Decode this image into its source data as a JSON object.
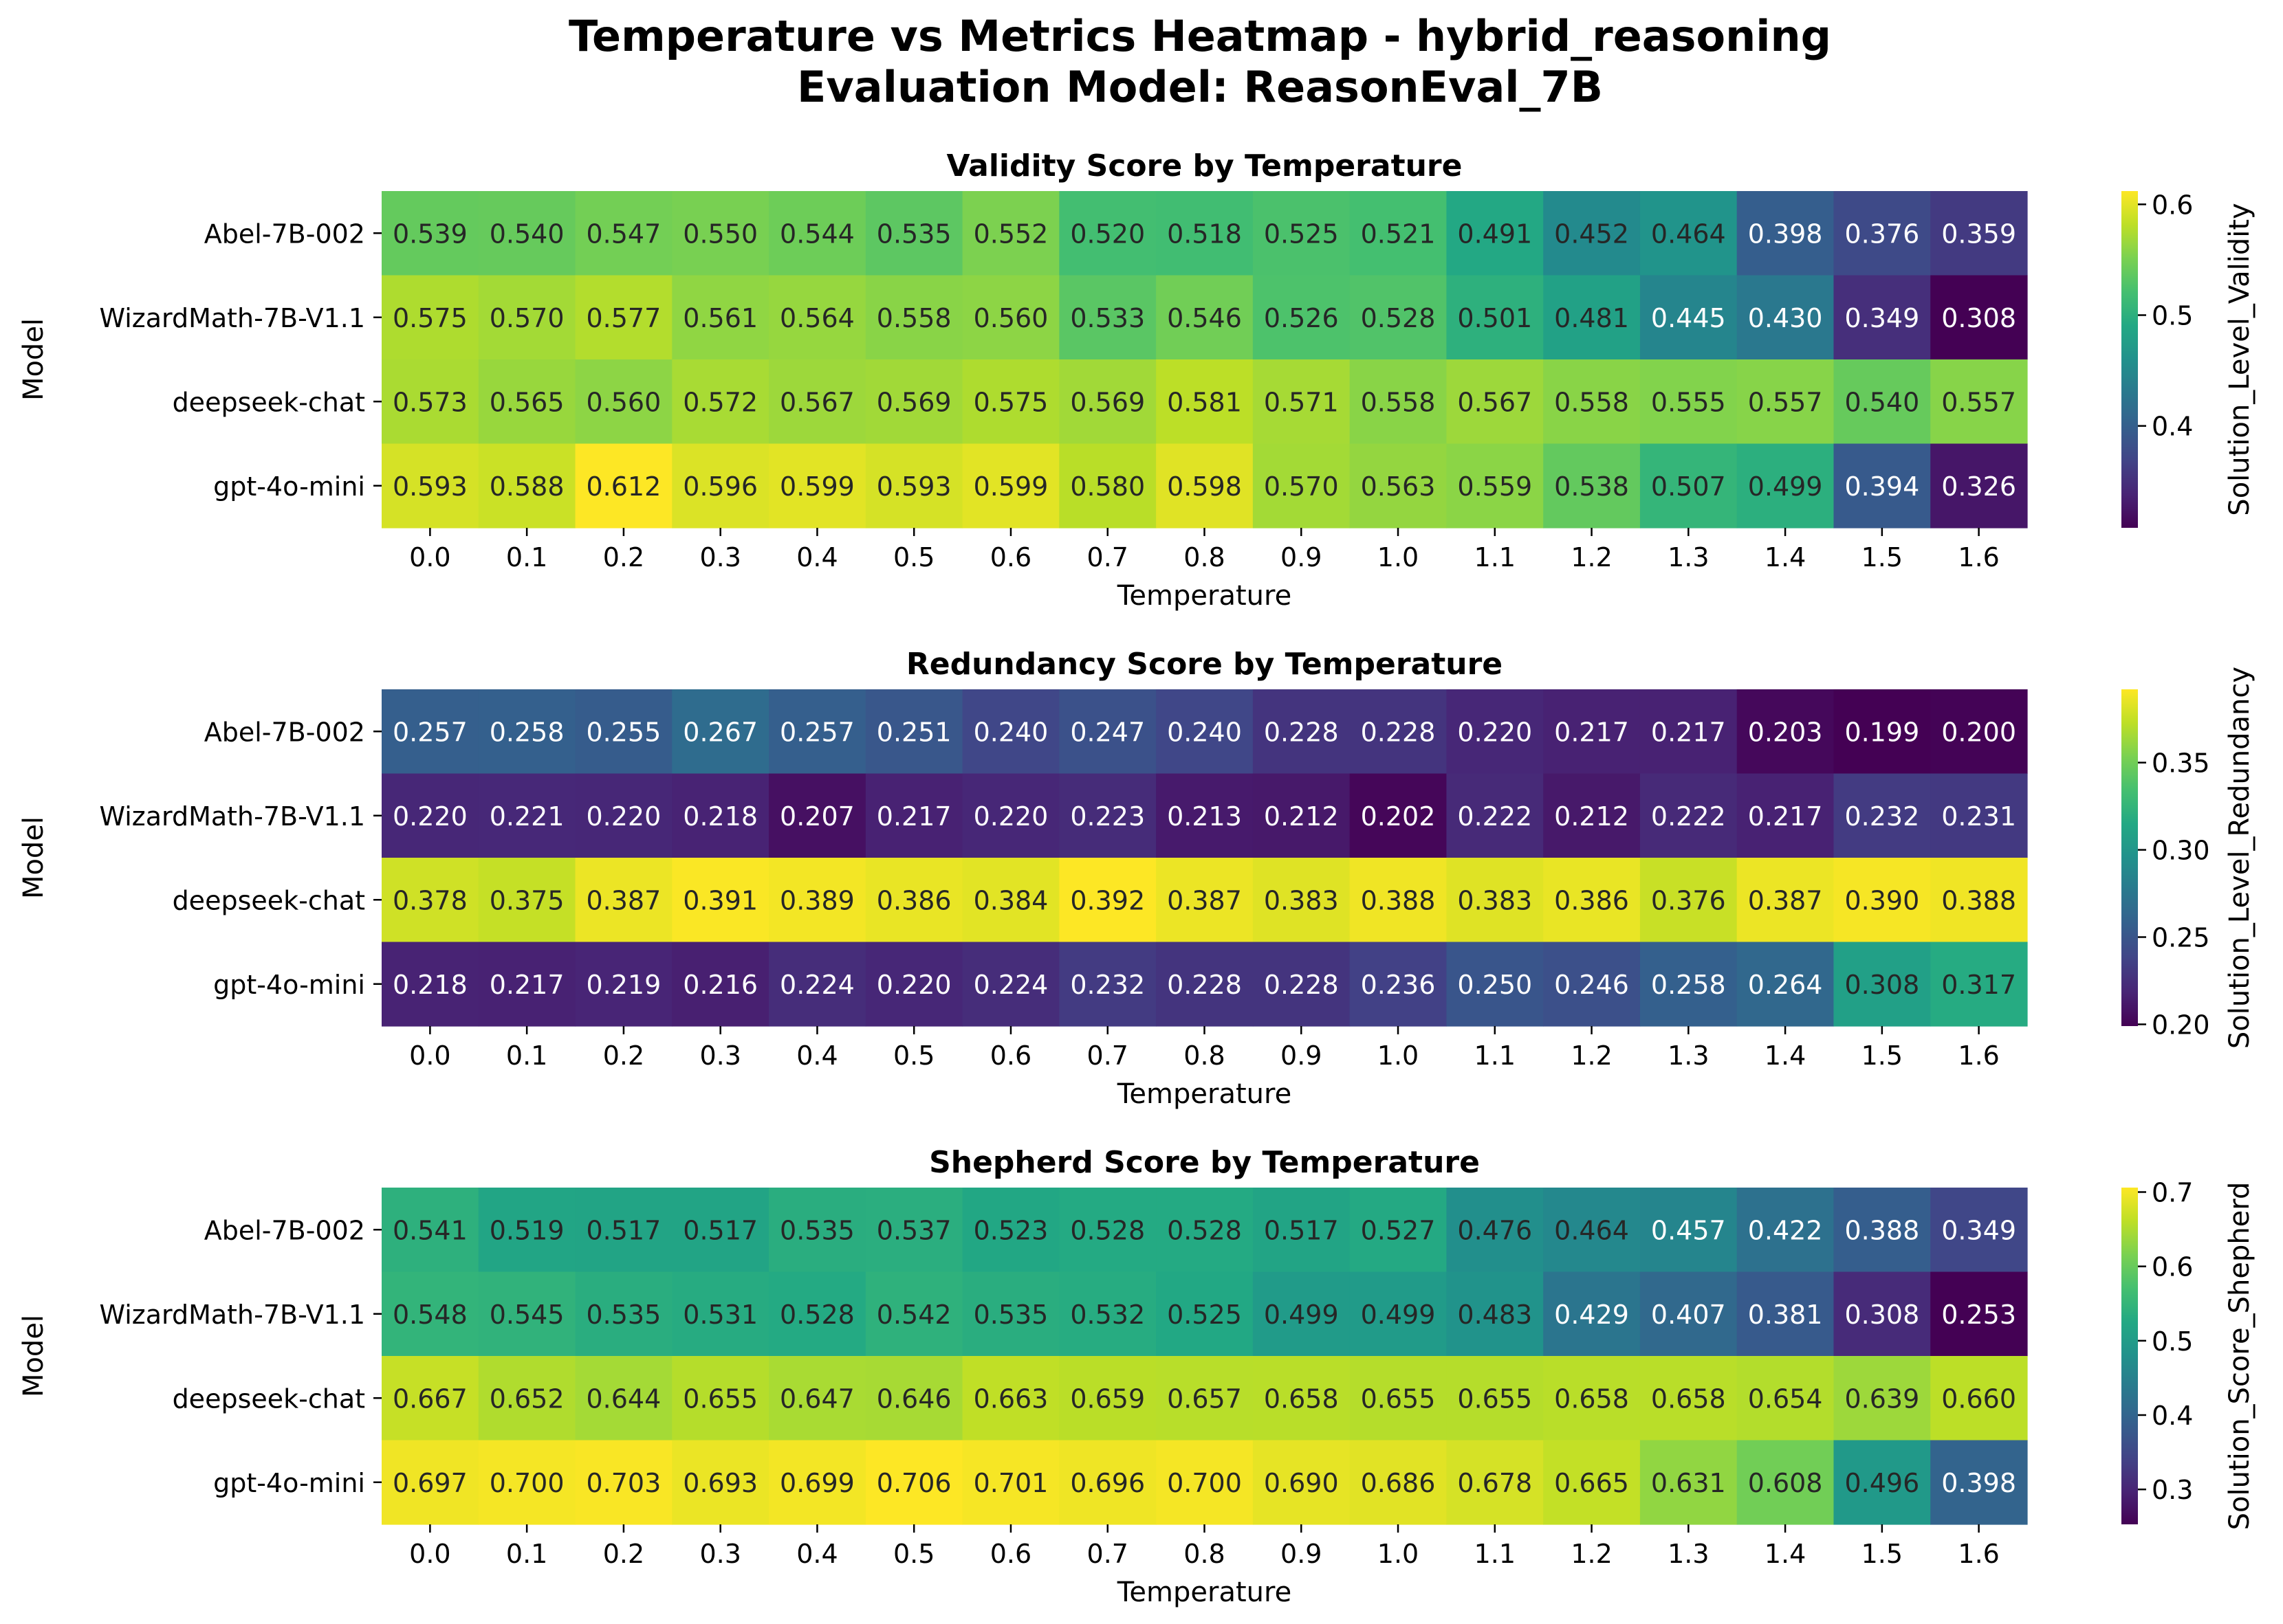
{
  "figure": {
    "title_line1": "Temperature vs Metrics Heatmap - hybrid_reasoning",
    "title_line2": "Evaluation Model: ReasonEval_7B"
  },
  "chart_data": [
    {
      "type": "heatmap",
      "title": "Validity Score by Temperature",
      "xlabel": "Temperature",
      "ylabel": "Model",
      "colorbar_label": "Solution_Level_Validity",
      "colormap": "viridis",
      "vmin": 0.308,
      "vmax": 0.612,
      "colorbar_ticks": [
        0.4,
        0.5,
        0.6
      ],
      "colorbar_tick_labels": [
        "0.4",
        "0.5",
        "0.6"
      ],
      "x": [
        "0.0",
        "0.1",
        "0.2",
        "0.3",
        "0.4",
        "0.5",
        "0.6",
        "0.7",
        "0.8",
        "0.9",
        "1.0",
        "1.1",
        "1.2",
        "1.3",
        "1.4",
        "1.5",
        "1.6"
      ],
      "y": [
        "Abel-7B-002",
        "WizardMath-7B-V1.1",
        "deepseek-chat",
        "gpt-4o-mini"
      ],
      "values": [
        [
          0.539,
          0.54,
          0.547,
          0.55,
          0.544,
          0.535,
          0.552,
          0.52,
          0.518,
          0.525,
          0.521,
          0.491,
          0.452,
          0.464,
          0.398,
          0.376,
          0.359
        ],
        [
          0.575,
          0.57,
          0.577,
          0.561,
          0.564,
          0.558,
          0.56,
          0.533,
          0.546,
          0.526,
          0.528,
          0.501,
          0.481,
          0.445,
          0.43,
          0.349,
          0.308
        ],
        [
          0.573,
          0.565,
          0.56,
          0.572,
          0.567,
          0.569,
          0.575,
          0.569,
          0.581,
          0.571,
          0.558,
          0.567,
          0.558,
          0.555,
          0.557,
          0.54,
          0.557
        ],
        [
          0.593,
          0.588,
          0.612,
          0.596,
          0.599,
          0.593,
          0.599,
          0.58,
          0.598,
          0.57,
          0.563,
          0.559,
          0.538,
          0.507,
          0.499,
          0.394,
          0.326
        ]
      ]
    },
    {
      "type": "heatmap",
      "title": "Redundancy Score by Temperature",
      "xlabel": "Temperature",
      "ylabel": "Model",
      "colorbar_label": "Solution_Level_Redundancy",
      "colormap": "viridis",
      "vmin": 0.199,
      "vmax": 0.392,
      "colorbar_ticks": [
        0.2,
        0.25,
        0.3,
        0.35
      ],
      "colorbar_tick_labels": [
        "0.20",
        "0.25",
        "0.30",
        "0.35"
      ],
      "x": [
        "0.0",
        "0.1",
        "0.2",
        "0.3",
        "0.4",
        "0.5",
        "0.6",
        "0.7",
        "0.8",
        "0.9",
        "1.0",
        "1.1",
        "1.2",
        "1.3",
        "1.4",
        "1.5",
        "1.6"
      ],
      "y": [
        "Abel-7B-002",
        "WizardMath-7B-V1.1",
        "deepseek-chat",
        "gpt-4o-mini"
      ],
      "values": [
        [
          0.257,
          0.258,
          0.255,
          0.267,
          0.257,
          0.251,
          0.24,
          0.247,
          0.24,
          0.228,
          0.228,
          0.22,
          0.217,
          0.217,
          0.203,
          0.199,
          0.2
        ],
        [
          0.22,
          0.221,
          0.22,
          0.218,
          0.207,
          0.217,
          0.22,
          0.223,
          0.213,
          0.212,
          0.202,
          0.222,
          0.212,
          0.222,
          0.217,
          0.232,
          0.231
        ],
        [
          0.378,
          0.375,
          0.387,
          0.391,
          0.389,
          0.386,
          0.384,
          0.392,
          0.387,
          0.383,
          0.388,
          0.383,
          0.386,
          0.376,
          0.387,
          0.39,
          0.388
        ],
        [
          0.218,
          0.217,
          0.219,
          0.216,
          0.224,
          0.22,
          0.224,
          0.232,
          0.228,
          0.228,
          0.236,
          0.25,
          0.246,
          0.258,
          0.264,
          0.308,
          0.317
        ]
      ]
    },
    {
      "type": "heatmap",
      "title": "Shepherd Score by Temperature",
      "xlabel": "Temperature",
      "ylabel": "Model",
      "colorbar_label": "Solution_Score_Shepherd",
      "colormap": "viridis",
      "vmin": 0.253,
      "vmax": 0.706,
      "colorbar_ticks": [
        0.3,
        0.4,
        0.5,
        0.6,
        0.7
      ],
      "colorbar_tick_labels": [
        "0.3",
        "0.4",
        "0.5",
        "0.6",
        "0.7"
      ],
      "x": [
        "0.0",
        "0.1",
        "0.2",
        "0.3",
        "0.4",
        "0.5",
        "0.6",
        "0.7",
        "0.8",
        "0.9",
        "1.0",
        "1.1",
        "1.2",
        "1.3",
        "1.4",
        "1.5",
        "1.6"
      ],
      "y": [
        "Abel-7B-002",
        "WizardMath-7B-V1.1",
        "deepseek-chat",
        "gpt-4o-mini"
      ],
      "values": [
        [
          0.541,
          0.519,
          0.517,
          0.517,
          0.535,
          0.537,
          0.523,
          0.528,
          0.528,
          0.517,
          0.527,
          0.476,
          0.464,
          0.457,
          0.422,
          0.388,
          0.349
        ],
        [
          0.548,
          0.545,
          0.535,
          0.531,
          0.528,
          0.542,
          0.535,
          0.532,
          0.525,
          0.499,
          0.499,
          0.483,
          0.429,
          0.407,
          0.381,
          0.308,
          0.253
        ],
        [
          0.667,
          0.652,
          0.644,
          0.655,
          0.647,
          0.646,
          0.663,
          0.659,
          0.657,
          0.658,
          0.655,
          0.655,
          0.658,
          0.658,
          0.654,
          0.639,
          0.66
        ],
        [
          0.697,
          0.7,
          0.703,
          0.693,
          0.699,
          0.706,
          0.701,
          0.696,
          0.7,
          0.69,
          0.686,
          0.678,
          0.665,
          0.631,
          0.608,
          0.496,
          0.398
        ]
      ]
    }
  ]
}
